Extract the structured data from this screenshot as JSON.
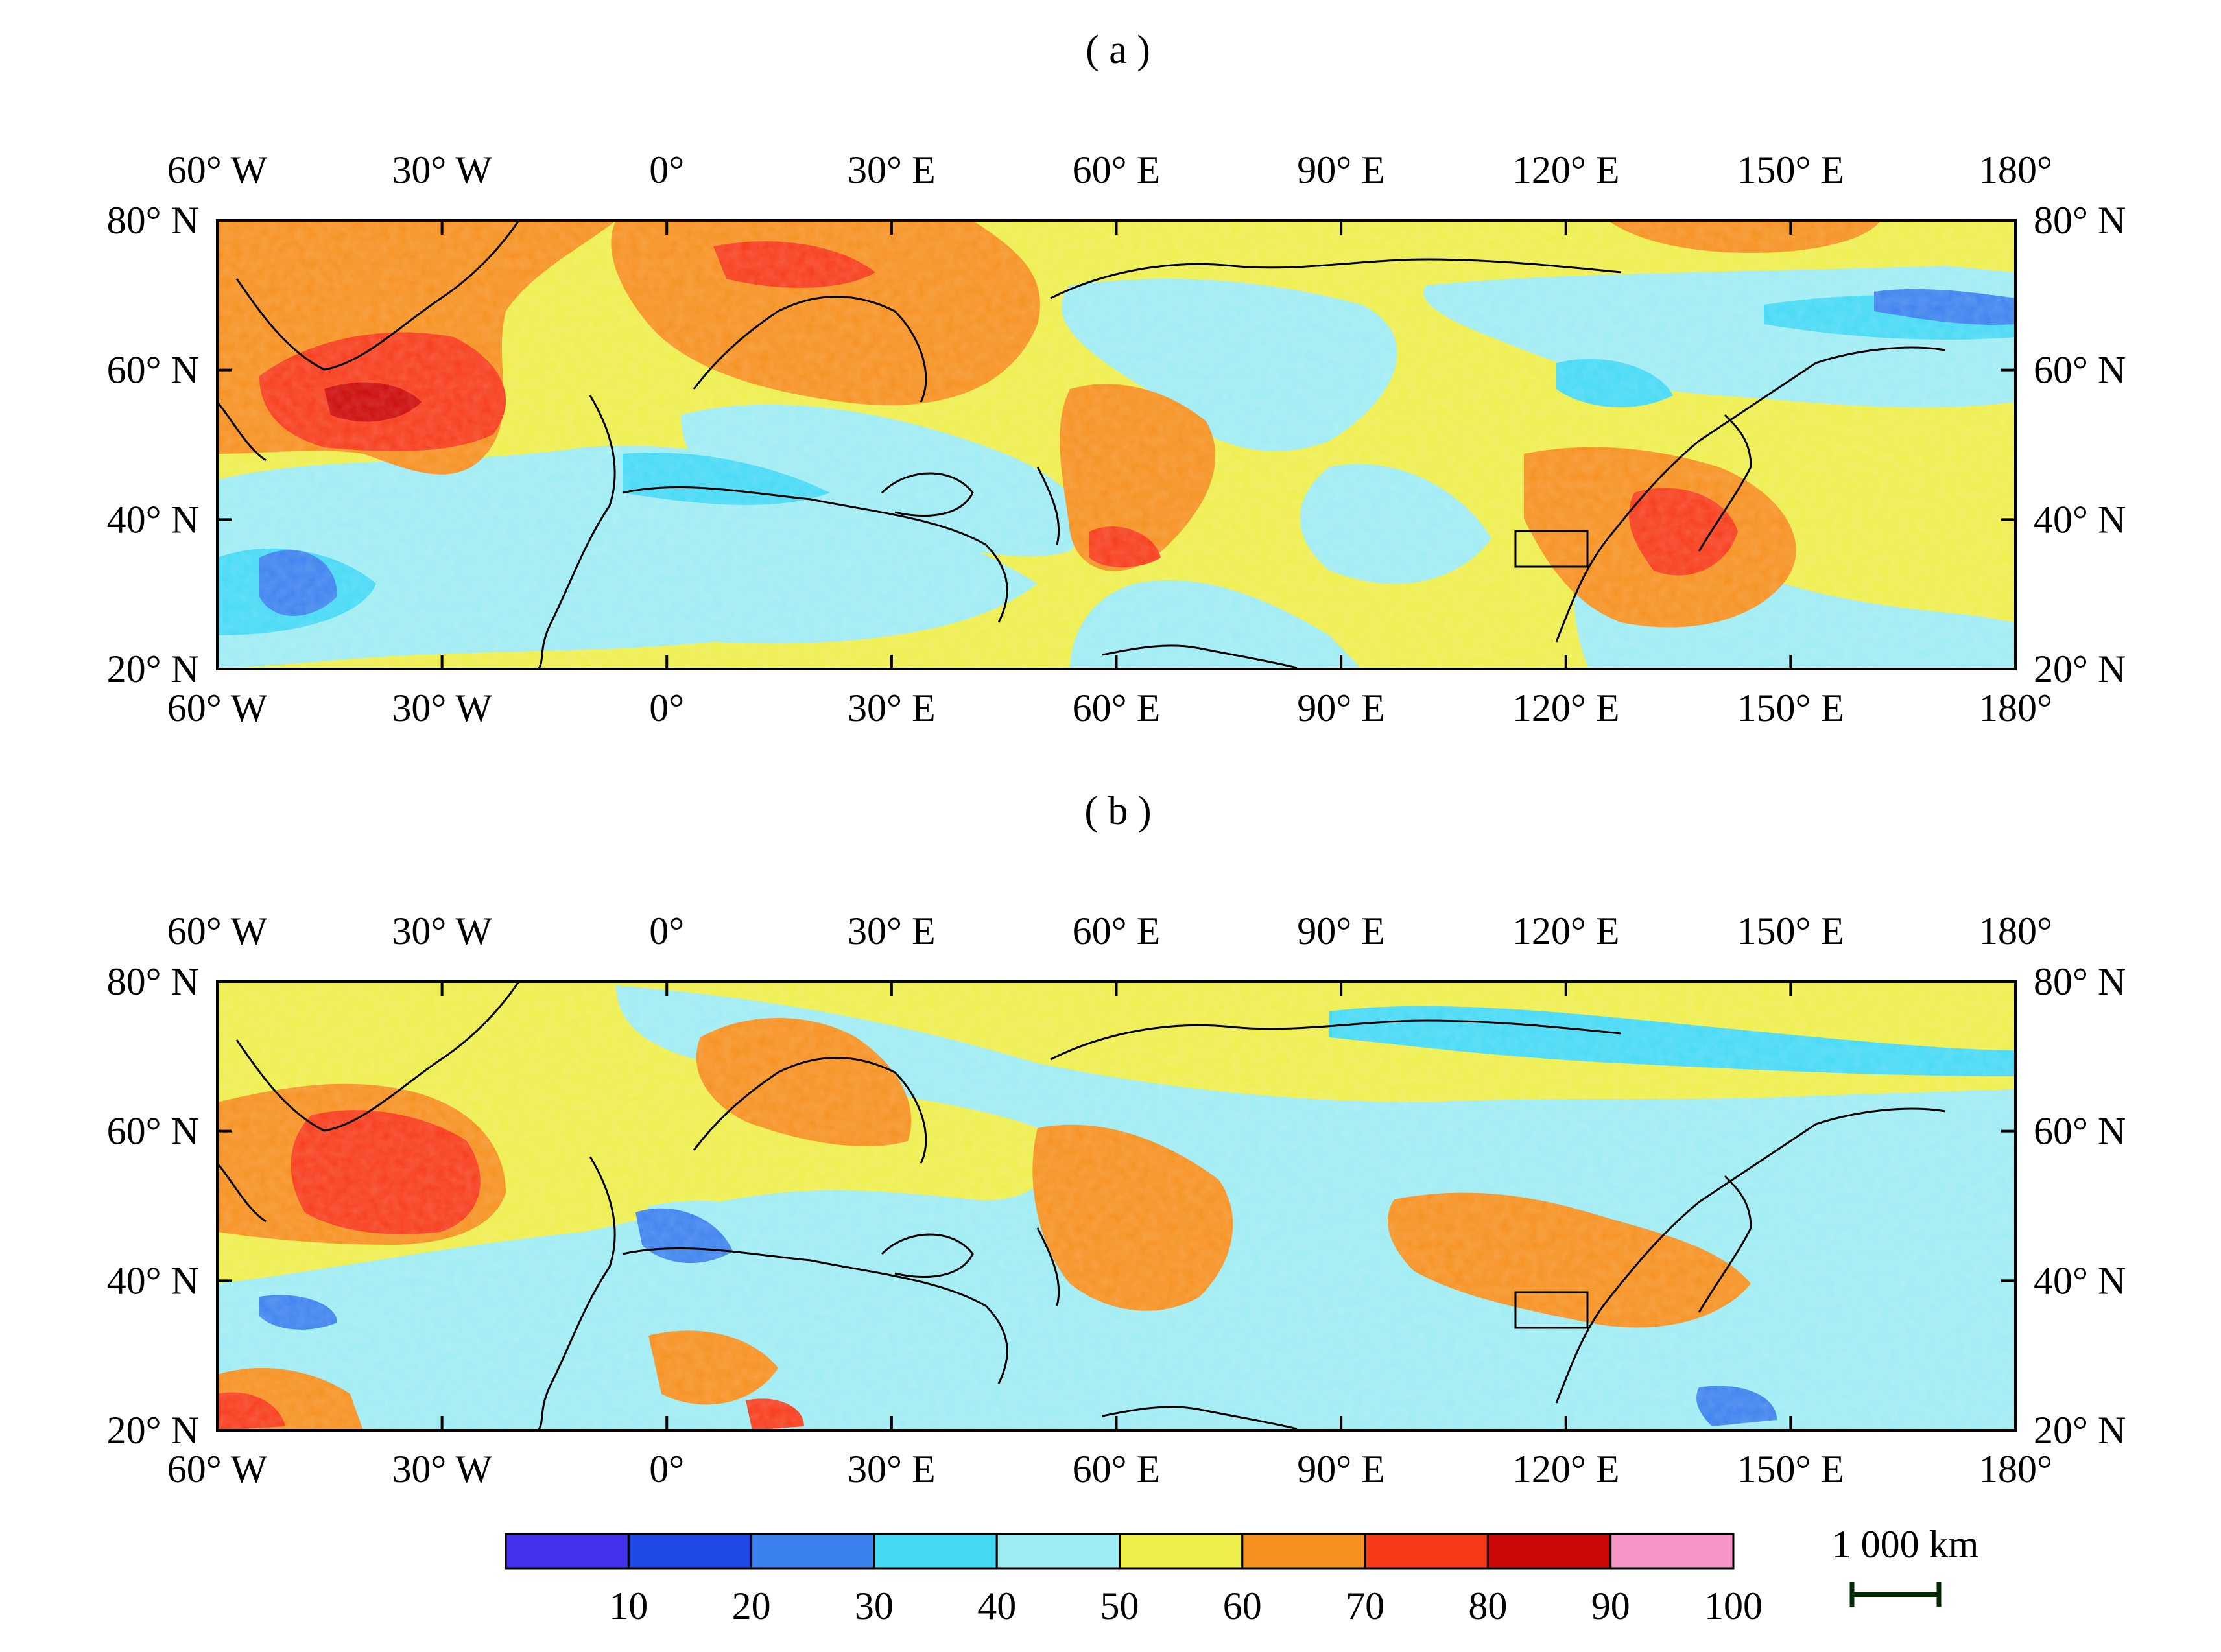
{
  "panels": [
    {
      "label": "( a )"
    },
    {
      "label": "( b )"
    }
  ],
  "lon_labels": [
    "60° W",
    "30° W",
    "0°",
    "30° E",
    "60° E",
    "90° E",
    "120° E",
    "150° E",
    "180°"
  ],
  "lat_labels": [
    "80° N",
    "60° N",
    "40° N",
    "20° N"
  ],
  "map_extent": {
    "lon": [
      -60,
      180
    ],
    "lat": [
      20,
      80
    ]
  },
  "study_box": {
    "lon": [
      113,
      123
    ],
    "lat": [
      34,
      38
    ]
  },
  "colorbar": {
    "bins": [
      {
        "range": [
          0,
          10
        ],
        "color": "#4433ee"
      },
      {
        "range": [
          10,
          20
        ],
        "color": "#1f48e6"
      },
      {
        "range": [
          20,
          30
        ],
        "color": "#3b82ee"
      },
      {
        "range": [
          30,
          40
        ],
        "color": "#45d9f5"
      },
      {
        "range": [
          40,
          50
        ],
        "color": "#9eecf3"
      },
      {
        "range": [
          50,
          60
        ],
        "color": "#eeee4c"
      },
      {
        "range": [
          60,
          70
        ],
        "color": "#f6901f"
      },
      {
        "range": [
          70,
          80
        ],
        "color": "#f73b1a"
      },
      {
        "range": [
          80,
          90
        ],
        "color": "#cc0808"
      },
      {
        "range": [
          90,
          100
        ],
        "color": "#f695c6"
      }
    ],
    "tick_labels": [
      "10",
      "20",
      "30",
      "40",
      "50",
      "60",
      "70",
      "80",
      "90",
      "100"
    ]
  },
  "scale_bar": {
    "label": "1 000 km"
  }
}
